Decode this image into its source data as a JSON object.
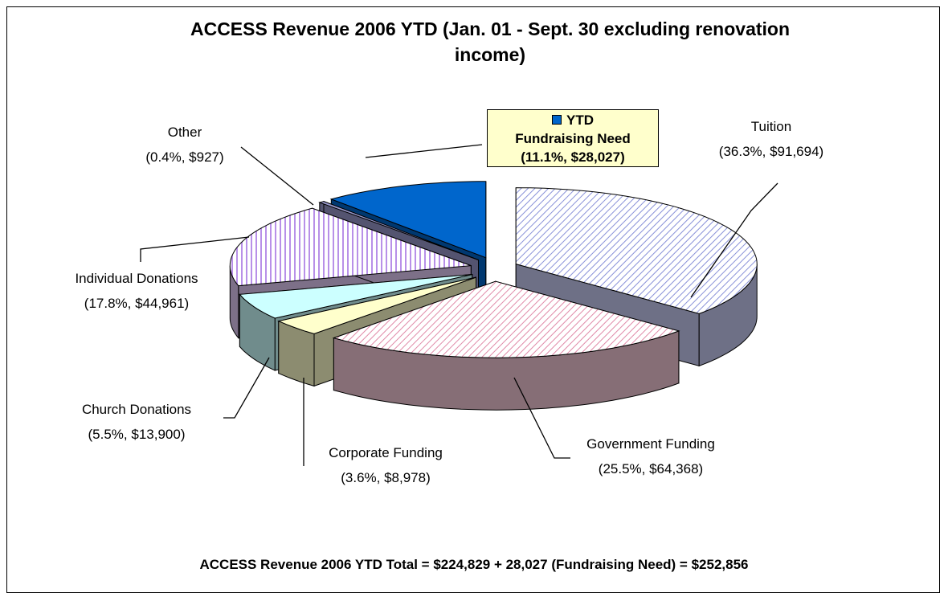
{
  "chart_data": {
    "type": "pie3d",
    "title": "ACCESS Revenue 2006 YTD (Jan. 01 - Sept. 30  excluding renovation income)",
    "footnote": "ACCESS Revenue 2006 YTD Total = $224,829 + 28,027 (Fundraising Need) = $252,856",
    "categories": [
      "Tuition",
      "Government Funding",
      "Corporate Funding",
      "Church Donations",
      "Individual Donations",
      "Other",
      "YTD Fundraising Need"
    ],
    "values": [
      91694,
      64368,
      8978,
      13900,
      44961,
      927,
      28027
    ],
    "value_labels": [
      "(36.3%, $91,694)",
      "(25.5%, $64,368)",
      "(3.6%, $8,978)",
      "(5.5%, $13,900)",
      "(17.8%, $44,961)",
      "(0.4%, $927)",
      "(11.1%, $28,027)"
    ],
    "colors": [
      "#c8ccf4",
      "#f4c8d8",
      "#ffffcc",
      "#ccffff",
      "#e4ccf8",
      "#9999cc",
      "#0066cc"
    ]
  }
}
